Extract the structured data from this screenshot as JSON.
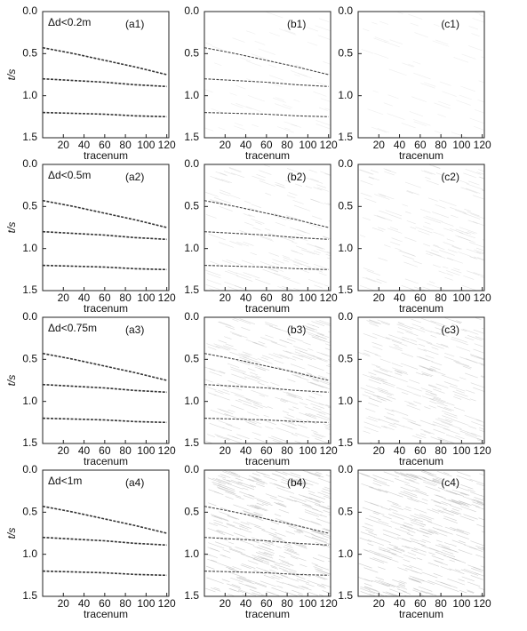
{
  "chart_data": [
    {
      "type": "seismic",
      "label": "(a1)",
      "annotation": "Δd<0.2m",
      "xlabel": "tracenum",
      "ylabel": "t/s",
      "xlim": [
        0,
        122
      ],
      "ylim": [
        0,
        1.5
      ],
      "y_inverted": true,
      "xticks": [
        20,
        40,
        60,
        80,
        100,
        120
      ],
      "yticks": [
        {
          "value": 0,
          "label": "0.0"
        },
        0.5,
        {
          "value": 1,
          "label": "1.0"
        },
        1.5
      ],
      "color": "#333",
      "events": [
        {
          "x": [
            0,
            30,
            60,
            90,
            120
          ],
          "values": [
            0.43,
            0.5,
            0.58,
            0.66,
            0.75
          ]
        },
        {
          "x": [
            0,
            30,
            60,
            90,
            120
          ],
          "values": [
            0.8,
            0.82,
            0.84,
            0.87,
            0.89
          ]
        },
        {
          "x": [
            0,
            30,
            60,
            90,
            120
          ],
          "values": [
            1.2,
            1.21,
            1.22,
            1.24,
            1.25
          ]
        }
      ]
    },
    {
      "type": "seismic",
      "label": "(b1)",
      "xlabel": "tracenum",
      "xlim": [
        0,
        122
      ],
      "ylim": [
        0,
        1.5
      ],
      "y_inverted": true,
      "xticks": [
        20,
        40,
        60,
        80,
        100,
        120
      ],
      "yticks": [
        {
          "value": 0,
          "label": "0.0"
        },
        0.5,
        {
          "value": 1,
          "label": "1.0"
        },
        1.5
      ],
      "color": "#444",
      "events": [
        {
          "x": [
            0,
            30,
            60,
            90,
            120
          ],
          "values": [
            0.43,
            0.5,
            0.58,
            0.66,
            0.75
          ]
        },
        {
          "x": [
            0,
            30,
            60,
            90,
            120
          ],
          "values": [
            0.8,
            0.82,
            0.84,
            0.87,
            0.89
          ]
        },
        {
          "x": [
            0,
            30,
            60,
            90,
            120
          ],
          "values": [
            1.2,
            1.21,
            1.22,
            1.24,
            1.25
          ]
        }
      ]
    },
    {
      "type": "seismic",
      "label": "(c1)",
      "xlabel": "tracenum",
      "xlim": [
        0,
        122
      ],
      "ylim": [
        0,
        1.5
      ],
      "y_inverted": true,
      "xticks": [
        20,
        40,
        60,
        80,
        100,
        120
      ],
      "yticks": [
        {
          "value": 0,
          "label": "0.0"
        },
        0.5,
        {
          "value": 1,
          "label": "1.0"
        },
        1.5
      ],
      "color": "#444",
      "events": []
    },
    {
      "type": "seismic",
      "label": "(a2)",
      "annotation": "Δd<0.5m",
      "xlabel": "tracenum",
      "ylabel": "t/s",
      "xlim": [
        0,
        122
      ],
      "ylim": [
        0,
        1.5
      ],
      "y_inverted": true,
      "xticks": [
        20,
        40,
        60,
        80,
        100,
        120
      ],
      "yticks": [
        {
          "value": 0,
          "label": "0.0"
        },
        0.5,
        {
          "value": 1,
          "label": "1.0"
        },
        1.5
      ],
      "color": "#333",
      "events": [
        {
          "x": [
            0,
            30,
            60,
            90,
            120
          ],
          "values": [
            0.43,
            0.5,
            0.58,
            0.66,
            0.75
          ]
        },
        {
          "x": [
            0,
            30,
            60,
            90,
            120
          ],
          "values": [
            0.8,
            0.82,
            0.84,
            0.87,
            0.89
          ]
        },
        {
          "x": [
            0,
            30,
            60,
            90,
            120
          ],
          "values": [
            1.2,
            1.21,
            1.22,
            1.24,
            1.25
          ]
        }
      ]
    },
    {
      "type": "seismic",
      "label": "(b2)",
      "xlabel": "tracenum",
      "xlim": [
        0,
        122
      ],
      "ylim": [
        0,
        1.5
      ],
      "y_inverted": true,
      "xticks": [
        20,
        40,
        60,
        80,
        100,
        120
      ],
      "yticks": [
        {
          "value": 0,
          "label": "0.0"
        },
        0.5,
        {
          "value": 1,
          "label": "1.0"
        },
        1.5
      ],
      "color": "#444",
      "events": [
        {
          "x": [
            0,
            30,
            60,
            90,
            120
          ],
          "values": [
            0.43,
            0.5,
            0.58,
            0.66,
            0.75
          ]
        },
        {
          "x": [
            0,
            30,
            60,
            90,
            120
          ],
          "values": [
            0.8,
            0.82,
            0.84,
            0.87,
            0.89
          ]
        },
        {
          "x": [
            0,
            30,
            60,
            90,
            120
          ],
          "values": [
            1.2,
            1.21,
            1.22,
            1.24,
            1.25
          ]
        }
      ]
    },
    {
      "type": "seismic",
      "label": "(c2)",
      "xlabel": "tracenum",
      "xlim": [
        0,
        122
      ],
      "ylim": [
        0,
        1.5
      ],
      "y_inverted": true,
      "xticks": [
        20,
        40,
        60,
        80,
        100,
        120
      ],
      "yticks": [
        {
          "value": 0,
          "label": "0.0"
        },
        0.5,
        {
          "value": 1,
          "label": "1.0"
        },
        1.5
      ],
      "color": "#444",
      "events": []
    },
    {
      "type": "seismic",
      "label": "(a3)",
      "annotation": "Δd<0.75m",
      "xlabel": "tracenum",
      "ylabel": "t/s",
      "xlim": [
        0,
        122
      ],
      "ylim": [
        0,
        1.5
      ],
      "y_inverted": true,
      "xticks": [
        20,
        40,
        60,
        80,
        100,
        120
      ],
      "yticks": [
        {
          "value": 0,
          "label": "0.0"
        },
        0.5,
        {
          "value": 1,
          "label": "1.0"
        },
        1.5
      ],
      "color": "#333",
      "events": [
        {
          "x": [
            0,
            30,
            60,
            90,
            120
          ],
          "values": [
            0.43,
            0.5,
            0.58,
            0.66,
            0.75
          ]
        },
        {
          "x": [
            0,
            30,
            60,
            90,
            120
          ],
          "values": [
            0.8,
            0.82,
            0.84,
            0.87,
            0.89
          ]
        },
        {
          "x": [
            0,
            30,
            60,
            90,
            120
          ],
          "values": [
            1.2,
            1.21,
            1.22,
            1.24,
            1.25
          ]
        }
      ]
    },
    {
      "type": "seismic",
      "label": "(b3)",
      "xlabel": "tracenum",
      "xlim": [
        0,
        122
      ],
      "ylim": [
        0,
        1.5
      ],
      "y_inverted": true,
      "xticks": [
        20,
        40,
        60,
        80,
        100,
        120
      ],
      "yticks": [
        {
          "value": 0,
          "label": "0.0"
        },
        0.5,
        {
          "value": 1,
          "label": "1.0"
        },
        1.5
      ],
      "color": "#444",
      "events": [
        {
          "x": [
            0,
            30,
            60,
            90,
            120
          ],
          "values": [
            0.43,
            0.5,
            0.58,
            0.66,
            0.75
          ]
        },
        {
          "x": [
            0,
            30,
            60,
            90,
            120
          ],
          "values": [
            0.8,
            0.82,
            0.84,
            0.87,
            0.89
          ]
        },
        {
          "x": [
            0,
            30,
            60,
            90,
            120
          ],
          "values": [
            1.2,
            1.21,
            1.22,
            1.24,
            1.25
          ]
        }
      ]
    },
    {
      "type": "seismic",
      "label": "(c3)",
      "xlabel": "tracenum",
      "xlim": [
        0,
        122
      ],
      "ylim": [
        0,
        1.5
      ],
      "y_inverted": true,
      "xticks": [
        20,
        40,
        60,
        80,
        100,
        120
      ],
      "yticks": [
        {
          "value": 0,
          "label": "0.0"
        },
        0.5,
        {
          "value": 1,
          "label": "1.0"
        },
        1.5
      ],
      "color": "#444",
      "events": []
    },
    {
      "type": "seismic",
      "label": "(a4)",
      "annotation": "Δd<1m",
      "xlabel": "tracenum",
      "ylabel": "t/s",
      "xlim": [
        0,
        122
      ],
      "ylim": [
        0,
        1.5
      ],
      "y_inverted": true,
      "xticks": [
        20,
        40,
        60,
        80,
        100,
        120
      ],
      "yticks": [
        {
          "value": 0,
          "label": "0.0"
        },
        0.5,
        {
          "value": 1,
          "label": "1.0"
        },
        1.5
      ],
      "color": "#333",
      "events": [
        {
          "x": [
            0,
            30,
            60,
            90,
            120
          ],
          "values": [
            0.43,
            0.5,
            0.58,
            0.66,
            0.75
          ]
        },
        {
          "x": [
            0,
            30,
            60,
            90,
            120
          ],
          "values": [
            0.8,
            0.82,
            0.84,
            0.87,
            0.89
          ]
        },
        {
          "x": [
            0,
            30,
            60,
            90,
            120
          ],
          "values": [
            1.2,
            1.21,
            1.22,
            1.24,
            1.25
          ]
        }
      ]
    },
    {
      "type": "seismic",
      "label": "(b4)",
      "xlabel": "tracenum",
      "xlim": [
        0,
        122
      ],
      "ylim": [
        0,
        1.5
      ],
      "y_inverted": true,
      "xticks": [
        20,
        40,
        60,
        80,
        100,
        120
      ],
      "yticks": [
        {
          "value": 0,
          "label": "0.0"
        },
        0.5,
        {
          "value": 1,
          "label": "1.0"
        },
        1.5
      ],
      "color": "#444",
      "events": [
        {
          "x": [
            0,
            30,
            60,
            90,
            120
          ],
          "values": [
            0.43,
            0.5,
            0.58,
            0.66,
            0.75
          ]
        },
        {
          "x": [
            0,
            30,
            60,
            90,
            120
          ],
          "values": [
            0.8,
            0.82,
            0.84,
            0.87,
            0.89
          ]
        },
        {
          "x": [
            0,
            30,
            60,
            90,
            120
          ],
          "values": [
            1.2,
            1.21,
            1.22,
            1.24,
            1.25
          ]
        }
      ]
    },
    {
      "type": "seismic",
      "label": "(c4)",
      "xlabel": "tracenum",
      "xlim": [
        0,
        122
      ],
      "ylim": [
        0,
        1.5
      ],
      "y_inverted": true,
      "xticks": [
        20,
        40,
        60,
        80,
        100,
        120
      ],
      "yticks": [
        {
          "value": 0,
          "label": "0.0"
        },
        0.5,
        {
          "value": 1,
          "label": "1.0"
        },
        1.5
      ],
      "color": "#444",
      "events": []
    }
  ]
}
